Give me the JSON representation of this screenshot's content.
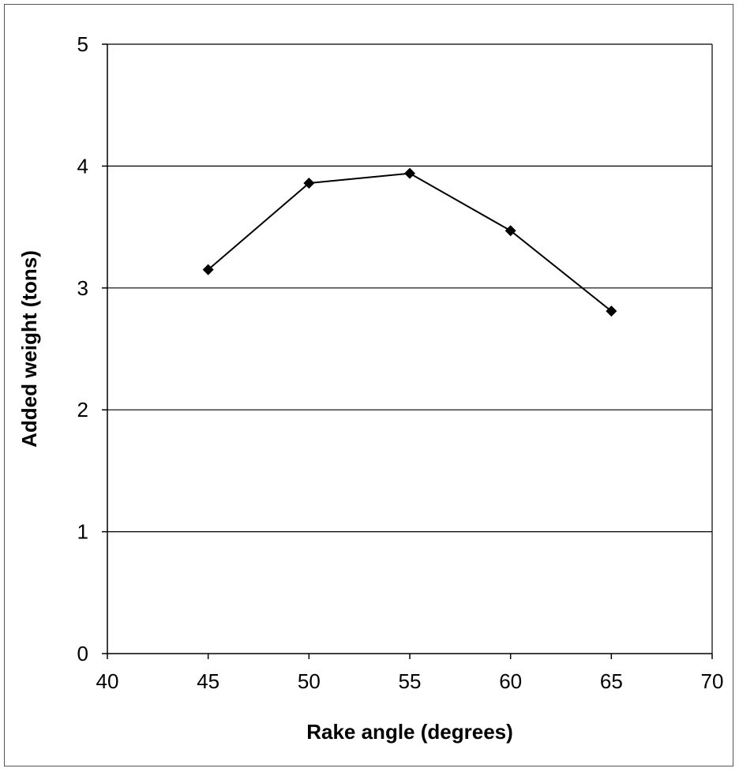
{
  "chart_data": {
    "type": "line",
    "title": "",
    "xlabel": "Rake angle (degrees)",
    "ylabel": "Added weight (tons)",
    "xlim": [
      40,
      70
    ],
    "ylim": [
      0,
      5
    ],
    "x_ticks": [
      40,
      45,
      50,
      55,
      60,
      65,
      70
    ],
    "y_ticks": [
      0,
      1,
      2,
      3,
      4,
      5
    ],
    "grid": "horizontal major gridlines",
    "legend": "none",
    "colors": {
      "line": "#000000",
      "marker": "#000000",
      "grid": "#000000",
      "background": "#ffffff"
    },
    "marker": "diamond",
    "series": [
      {
        "x": [
          45,
          50,
          55,
          60,
          65
        ],
        "values": [
          3.15,
          3.86,
          3.94,
          3.47,
          2.81
        ]
      }
    ]
  }
}
